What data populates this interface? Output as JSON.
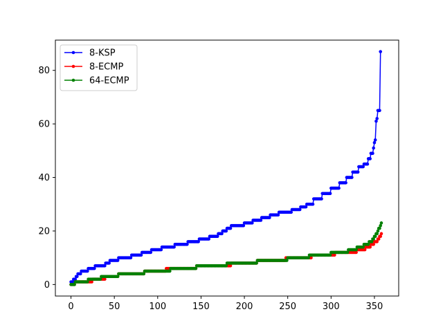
{
  "chart_data": {
    "type": "line",
    "title": "",
    "xlabel": "",
    "ylabel": "",
    "xlim": [
      -18,
      378
    ],
    "ylim": [
      -4.3,
      91.3
    ],
    "xticks": [
      0,
      50,
      100,
      150,
      200,
      250,
      300,
      350
    ],
    "yticks": [
      0,
      20,
      40,
      60,
      80
    ],
    "legend": {
      "placement": "top-left"
    },
    "series": [
      {
        "name": "8-KSP",
        "color": "#0000ff",
        "anchors": [
          [
            0,
            1
          ],
          [
            3,
            2
          ],
          [
            6,
            3
          ],
          [
            8,
            4
          ],
          [
            12,
            5
          ],
          [
            20,
            6
          ],
          [
            28,
            7
          ],
          [
            40,
            8
          ],
          [
            45,
            9
          ],
          [
            55,
            10
          ],
          [
            70,
            11
          ],
          [
            82,
            12
          ],
          [
            93,
            13
          ],
          [
            105,
            14
          ],
          [
            120,
            15
          ],
          [
            135,
            16
          ],
          [
            148,
            17
          ],
          [
            160,
            18
          ],
          [
            170,
            19
          ],
          [
            175,
            20
          ],
          [
            180,
            21
          ],
          [
            185,
            22
          ],
          [
            200,
            23
          ],
          [
            210,
            24
          ],
          [
            220,
            25
          ],
          [
            230,
            26
          ],
          [
            240,
            27
          ],
          [
            255,
            28
          ],
          [
            265,
            29
          ],
          [
            272,
            30
          ],
          [
            280,
            32
          ],
          [
            290,
            34
          ],
          [
            300,
            36
          ],
          [
            310,
            38
          ],
          [
            318,
            40
          ],
          [
            325,
            42
          ],
          [
            332,
            44
          ],
          [
            338,
            45
          ],
          [
            343,
            47
          ],
          [
            346,
            49
          ],
          [
            349,
            51
          ],
          [
            350,
            53
          ],
          [
            351,
            54
          ],
          [
            352,
            61
          ],
          [
            353,
            62
          ],
          [
            354,
            65
          ],
          [
            357,
            87
          ]
        ]
      },
      {
        "name": "8-ECMP",
        "color": "#ff0000",
        "anchors": [
          [
            0,
            0
          ],
          [
            5,
            1
          ],
          [
            25,
            2
          ],
          [
            40,
            3
          ],
          [
            55,
            4
          ],
          [
            85,
            5
          ],
          [
            110,
            6
          ],
          [
            145,
            7
          ],
          [
            185,
            8
          ],
          [
            215,
            9
          ],
          [
            248,
            10
          ],
          [
            278,
            11
          ],
          [
            305,
            12
          ],
          [
            330,
            13
          ],
          [
            340,
            14
          ],
          [
            346,
            15
          ],
          [
            350,
            16
          ],
          [
            354,
            17
          ],
          [
            356,
            18
          ],
          [
            358,
            19
          ]
        ]
      },
      {
        "name": "64-ECMP",
        "color": "#008000",
        "anchors": [
          [
            0,
            0
          ],
          [
            5,
            1
          ],
          [
            20,
            2
          ],
          [
            35,
            3
          ],
          [
            55,
            4
          ],
          [
            85,
            5
          ],
          [
            115,
            6
          ],
          [
            145,
            7
          ],
          [
            180,
            8
          ],
          [
            215,
            9
          ],
          [
            250,
            10
          ],
          [
            275,
            11
          ],
          [
            300,
            12
          ],
          [
            320,
            13
          ],
          [
            330,
            14
          ],
          [
            338,
            15
          ],
          [
            344,
            16
          ],
          [
            348,
            17
          ],
          [
            350,
            18
          ],
          [
            352,
            19
          ],
          [
            354,
            20
          ],
          [
            355,
            21
          ],
          [
            357,
            22
          ],
          [
            358,
            23
          ]
        ]
      }
    ]
  }
}
